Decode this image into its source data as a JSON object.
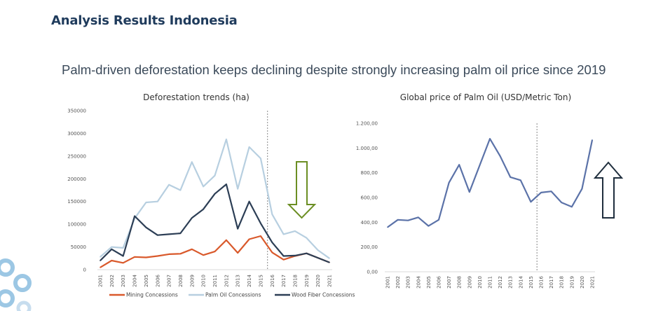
{
  "page": {
    "title": "Analysis Results Indonesia",
    "headline": "Palm-driven deforestation keeps declining despite strongly increasing palm oil price since 2019"
  },
  "arrows": {
    "deforestation_arrow_color": "#6b8e23",
    "price_arrow_color": "#1f2e3d"
  },
  "chart_data": [
    {
      "type": "line",
      "title": "Deforestation trends (ha)",
      "x": [
        "2001",
        "2002",
        "2003",
        "2004",
        "2005",
        "2006",
        "2007",
        "2008",
        "2009",
        "2010",
        "2011",
        "2012",
        "2013",
        "2014",
        "2015",
        "2016",
        "2017",
        "2018",
        "2019",
        "2020",
        "2021"
      ],
      "yticks": [
        "0",
        "50000",
        "100000",
        "150000",
        "200000",
        "250000",
        "300000",
        "350000"
      ],
      "ylim": [
        0,
        350000
      ],
      "marker_year": "2016",
      "legend_position": "bottom",
      "series": [
        {
          "name": "Mining Concessions",
          "color": "#d9592b",
          "values": [
            5000,
            20000,
            15000,
            28000,
            27000,
            30000,
            34000,
            35000,
            45000,
            32000,
            40000,
            65000,
            37000,
            67000,
            74000,
            38000,
            22000,
            30000,
            36000,
            26000,
            16000
          ]
        },
        {
          "name": "Palm Oil Concessions",
          "color": "#b7cfe0",
          "values": [
            28000,
            50000,
            48000,
            113000,
            148000,
            150000,
            187000,
            175000,
            237000,
            183000,
            207000,
            287000,
            178000,
            270000,
            245000,
            122000,
            78000,
            85000,
            70000,
            43000,
            25000
          ]
        },
        {
          "name": "Wood Fiber Concessions",
          "color": "#2c3e55",
          "values": [
            20000,
            45000,
            30000,
            118000,
            93000,
            76000,
            78000,
            80000,
            114000,
            133000,
            167000,
            188000,
            90000,
            150000,
            102000,
            60000,
            30000,
            31000,
            36000,
            26000,
            16000
          ]
        }
      ]
    },
    {
      "type": "line",
      "title": "Global price of Palm Oil (USD/Metric Ton)",
      "x": [
        "2001",
        "2002",
        "2003",
        "2004",
        "2005",
        "2006",
        "2007",
        "2008",
        "2009",
        "2010",
        "2011",
        "2012",
        "2013",
        "2014",
        "2015",
        "2016",
        "2017",
        "2018",
        "2019",
        "2020",
        "2021"
      ],
      "yticks": [
        "0,00",
        "200,00",
        "400,00",
        "600,00",
        "800,00",
        "1.000,00",
        "1.200,00"
      ],
      "ylim": [
        0,
        1200
      ],
      "marker_year": "2016",
      "series": [
        {
          "color": "#5b72a8",
          "values": [
            360,
            420,
            415,
            440,
            370,
            420,
            720,
            865,
            645,
            860,
            1075,
            935,
            765,
            740,
            565,
            640,
            650,
            560,
            525,
            670,
            1065
          ]
        }
      ]
    }
  ]
}
